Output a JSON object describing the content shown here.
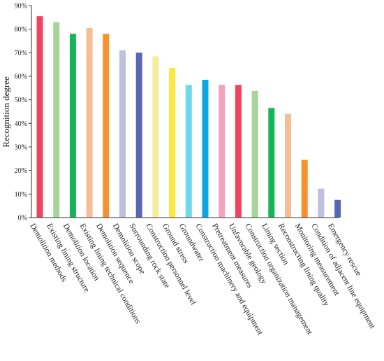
{
  "chart_data": {
    "type": "bar",
    "title": "",
    "xlabel": "",
    "ylabel": "Recognition degree",
    "ylim": [
      0,
      90
    ],
    "yticks": [
      "0%",
      "10%",
      "20%",
      "30%",
      "40%",
      "50%",
      "60%",
      "70%",
      "80%",
      "90%"
    ],
    "grid": false,
    "categories": [
      "Demolition methods",
      "Existing lining structure",
      "Demolition location",
      "Existing lining technical conditions",
      "Demolition sequence",
      "Demolition scope",
      "Surrounding rock state",
      "Construction personnel level",
      "Ground stress",
      "Groundwater",
      "Construction machinery and equipment",
      "Pretreatment measures",
      "Unfavorable geology",
      "Construction organization management",
      "Lining section",
      "Reconstructing lining quality",
      "Monitoring measurement",
      "Condition of adjacent line equipment",
      "Emergency rescue"
    ],
    "values": [
      85.5,
      83.0,
      78.0,
      80.5,
      78.0,
      71.0,
      70.0,
      68.5,
      63.5,
      56.3,
      58.5,
      56.3,
      56.3,
      53.8,
      46.5,
      44.0,
      24.5,
      12.3,
      7.5
    ],
    "colors": [
      "#f0435f",
      "#a8d39a",
      "#14b457",
      "#f7bd95",
      "#f7902f",
      "#bfbfe0",
      "#5966b3",
      "#f7ec9c",
      "#fde93b",
      "#6ed7ea",
      "#0aa5e3",
      "#f4a2bd",
      "#f0435f",
      "#a8d39a",
      "#14b457",
      "#f7bd95",
      "#f7902f",
      "#bfbfe0",
      "#5966b3"
    ]
  }
}
